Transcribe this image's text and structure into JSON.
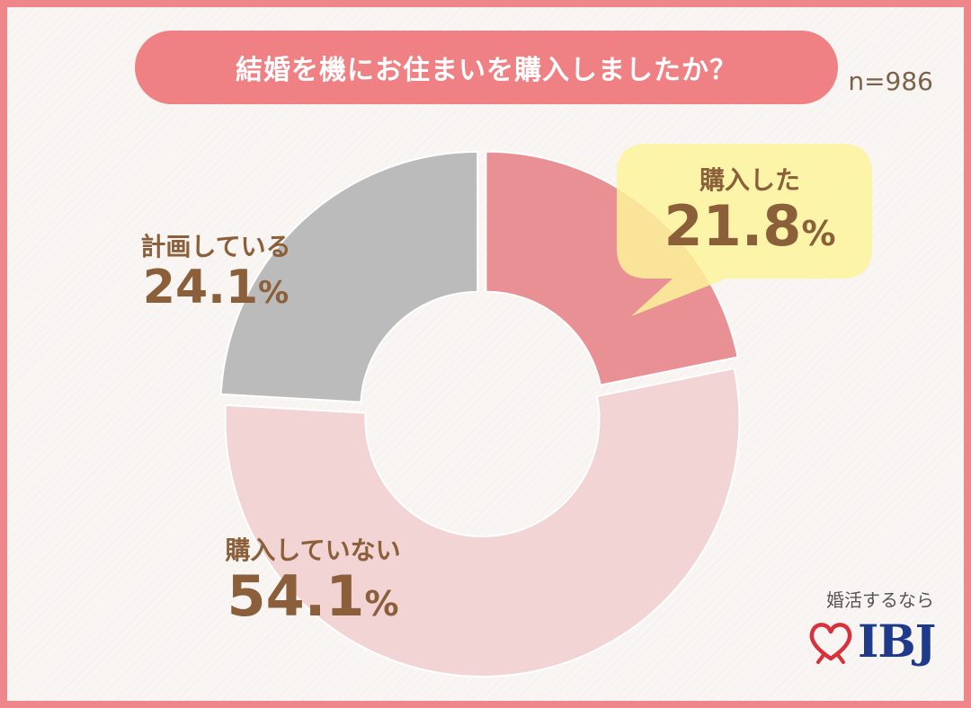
{
  "title": "結婚を機にお住まいを購入しましたか？",
  "sample_size": "n=986",
  "chart_data": {
    "type": "pie",
    "variant": "donut",
    "start": "12 o'clock, clockwise",
    "slices": [
      {
        "label": "購入した",
        "value": 21.8,
        "display": "21.8",
        "unit": "%",
        "color": "#e89093"
      },
      {
        "label": "購入していない",
        "value": 54.1,
        "display": "54.1",
        "unit": "%",
        "color": "#f2d4d5"
      },
      {
        "label": "計画している",
        "value": 24.1,
        "display": "24.1",
        "unit": "%",
        "color": "#bbbbbb"
      }
    ],
    "callout": {
      "slice": "購入した",
      "color": "#fdf39a"
    }
  },
  "logo": {
    "tagline": "婚活するなら",
    "text": "IBJ",
    "icon": "heart-ribbon-icon",
    "heart_color": "#d9303c",
    "text_color": "#1e3a8a"
  }
}
